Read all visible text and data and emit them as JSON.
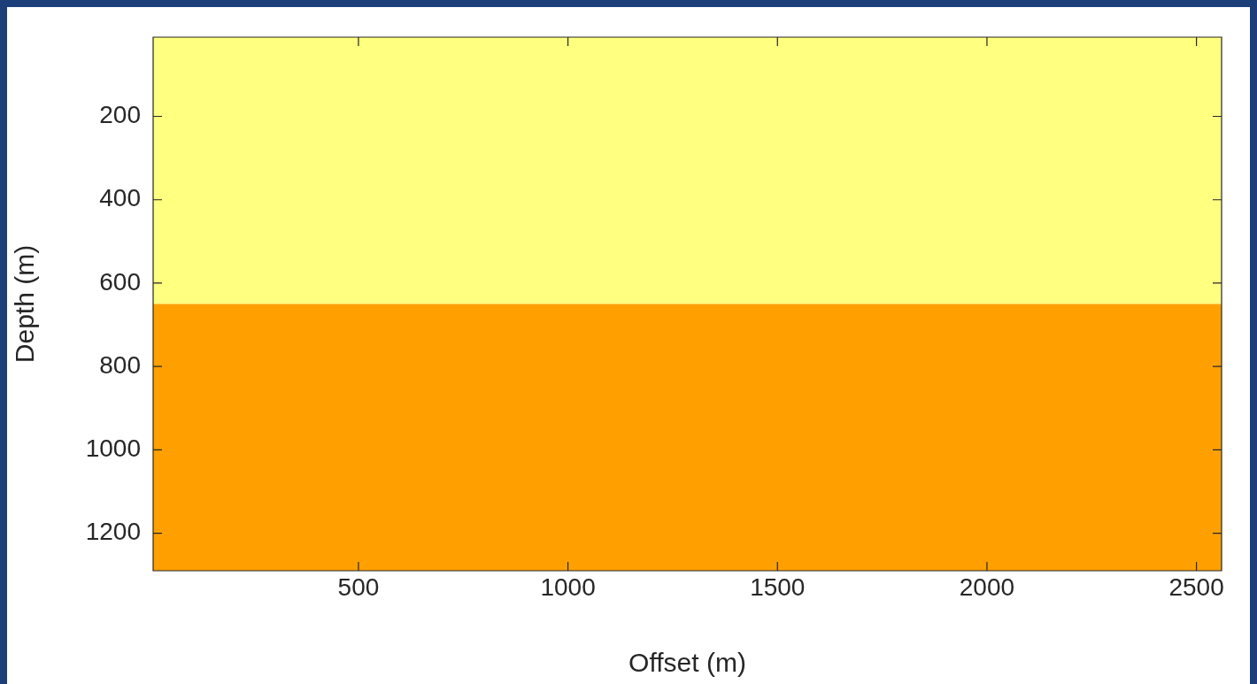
{
  "chart_data": {
    "type": "area",
    "xlabel": "Offset (m)",
    "ylabel": "Depth (m)",
    "xlim": [
      10,
      2560
    ],
    "xticks": [
      500,
      1000,
      1500,
      2000,
      2500
    ],
    "ylim": [
      1290,
      10
    ],
    "yticks": [
      200,
      400,
      600,
      800,
      1000,
      1200
    ],
    "bands": [
      {
        "axis": "y",
        "from": 10,
        "to": 650,
        "color": "#ffff80"
      },
      {
        "axis": "y",
        "from": 650,
        "to": 1290,
        "color": "#ffa000"
      }
    ],
    "grid": false
  }
}
